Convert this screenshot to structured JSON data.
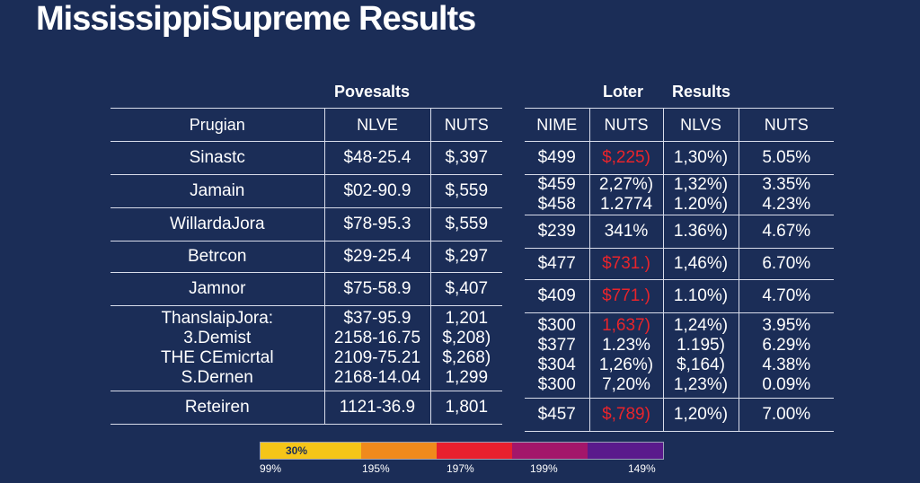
{
  "page": {
    "title": "MississippiSupreme Results"
  },
  "groups": {
    "left": "Povesalts",
    "right_a": "Loter",
    "right_b": "Results"
  },
  "left_table": {
    "headers": [
      "Prugian",
      "NLVE",
      "NUTS"
    ],
    "rows": [
      {
        "name": [
          "Sinastc"
        ],
        "v1": [
          "$48-25.4"
        ],
        "v2": [
          "$,397"
        ]
      },
      {
        "name": [
          "Jamain"
        ],
        "v1": [
          "$02-90.9"
        ],
        "v2": [
          "$,559"
        ]
      },
      {
        "name": [
          "WillardaJora"
        ],
        "v1": [
          "$78-95.3"
        ],
        "v2": [
          "$,559"
        ]
      },
      {
        "name": [
          "Betrcon"
        ],
        "v1": [
          "$29-25.4"
        ],
        "v2": [
          "$,297"
        ]
      },
      {
        "name": [
          "Jamnor"
        ],
        "v1": [
          "$75-58.9"
        ],
        "v2": [
          "$,407"
        ]
      },
      {
        "name": [
          "ThanslaipJora:",
          "3.Demist",
          "THE CEmicrtal",
          "S.Dernen"
        ],
        "v1": [
          "$37-95.9",
          "2158-16.75",
          "2109-75.21",
          "2168-14.04"
        ],
        "v2": [
          "1,201",
          "$,208)",
          "$,268)",
          "1,299"
        ]
      },
      {
        "name": [
          "Reteiren"
        ],
        "v1": [
          "1121-36.9"
        ],
        "v2": [
          "1,801"
        ]
      }
    ]
  },
  "right_table": {
    "headers": [
      "NIME",
      "NUTS",
      "NLVS",
      "NUTS"
    ],
    "rows": [
      {
        "c0": [
          "$499"
        ],
        "c1": [
          "$,225)"
        ],
        "c1_red": true,
        "c2": [
          "1,30%)"
        ],
        "c3": [
          "5.05%"
        ]
      },
      {
        "c0": [
          "$459",
          "$458"
        ],
        "c1": [
          "2,27%)",
          "1.2774"
        ],
        "c1_red": false,
        "c2": [
          "1,32%)",
          "1.20%)"
        ],
        "c3": [
          "3.35%",
          "4.23%"
        ]
      },
      {
        "c0": [
          "$239"
        ],
        "c1": [
          "341%"
        ],
        "c1_red": false,
        "c2": [
          "1.36%)"
        ],
        "c3": [
          "4.67%"
        ]
      },
      {
        "c0": [
          "$477"
        ],
        "c1": [
          "$731.)"
        ],
        "c1_red": true,
        "c2": [
          "1,46%)"
        ],
        "c3": [
          "6.70%"
        ]
      },
      {
        "c0": [
          "$409"
        ],
        "c1": [
          "$771.)"
        ],
        "c1_red": true,
        "c2": [
          "1.10%)"
        ],
        "c3": [
          "4.70%"
        ]
      },
      {
        "c0": [
          "$300",
          "$377",
          "$304",
          "$300"
        ],
        "c1": [
          "1,637)",
          "1.23%",
          "1,26%)",
          "7,20%"
        ],
        "c1_red_first": true,
        "c2": [
          "1,24%)",
          "1.195)",
          "$,164)",
          "1,23%)"
        ],
        "c3": [
          "3.95%",
          "6.29%",
          "4.38%",
          "0.09%"
        ]
      },
      {
        "c0": [
          "$457"
        ],
        "c1": [
          "$,789)"
        ],
        "c1_red": true,
        "c2": [
          "1,20%)"
        ],
        "c3": [
          "7.00%"
        ]
      }
    ]
  },
  "legend": {
    "inner_label": "30%",
    "colors": [
      "#f5c518",
      "#f08a1c",
      "#e8202e",
      "#a3166a",
      "#5a1a8c"
    ],
    "labels": [
      "99%",
      "195%",
      "197%",
      "199%",
      "149%"
    ]
  }
}
